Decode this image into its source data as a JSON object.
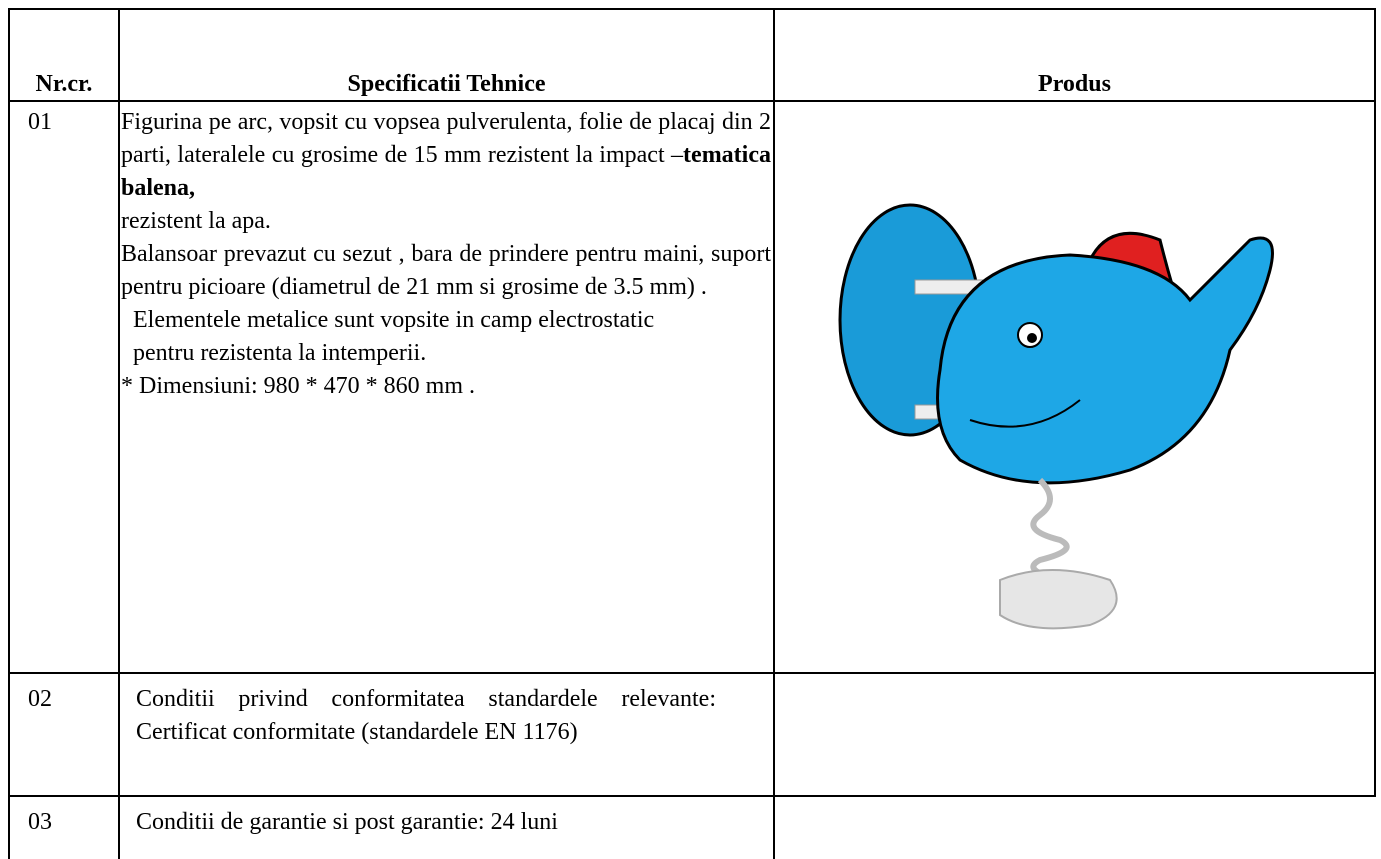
{
  "table": {
    "header": [
      "Nr.cr.",
      "Specificatii Tehnice",
      "Produs"
    ],
    "rows": [
      {
        "number": "01",
        "spec": {
          "intro": "Figurina pe arc, vopsit cu vopsea pulverulenta, folie de placaj din 2 parti, lateralele cu grosime de 15 mm rezistent la impact  –",
          "intro_bold": "tematica balena,",
          "intro_end": "rezistent la apa.",
          "paragraphs": [
            "Balansoar prevazut cu sezut , bara de prindere pentru maini, suport pentru picioare (diametrul de 21 mm si grosime de 3.5 mm) .",
            "Elementele metalice sunt vopsite in camp electrostatic pentru rezistenta la intemperii.",
            "* Dimensiuni: 980 * 470 * 860 mm ."
          ]
        }
      },
      {
        "number": "02",
        "spec": "Conditii privind conformitatea standardele relevante: Certificat conformitate (standardele EN 1176)"
      },
      {
        "number": "03",
        "spec": "Conditii de garantie si post garantie: 24 luni"
      }
    ]
  }
}
